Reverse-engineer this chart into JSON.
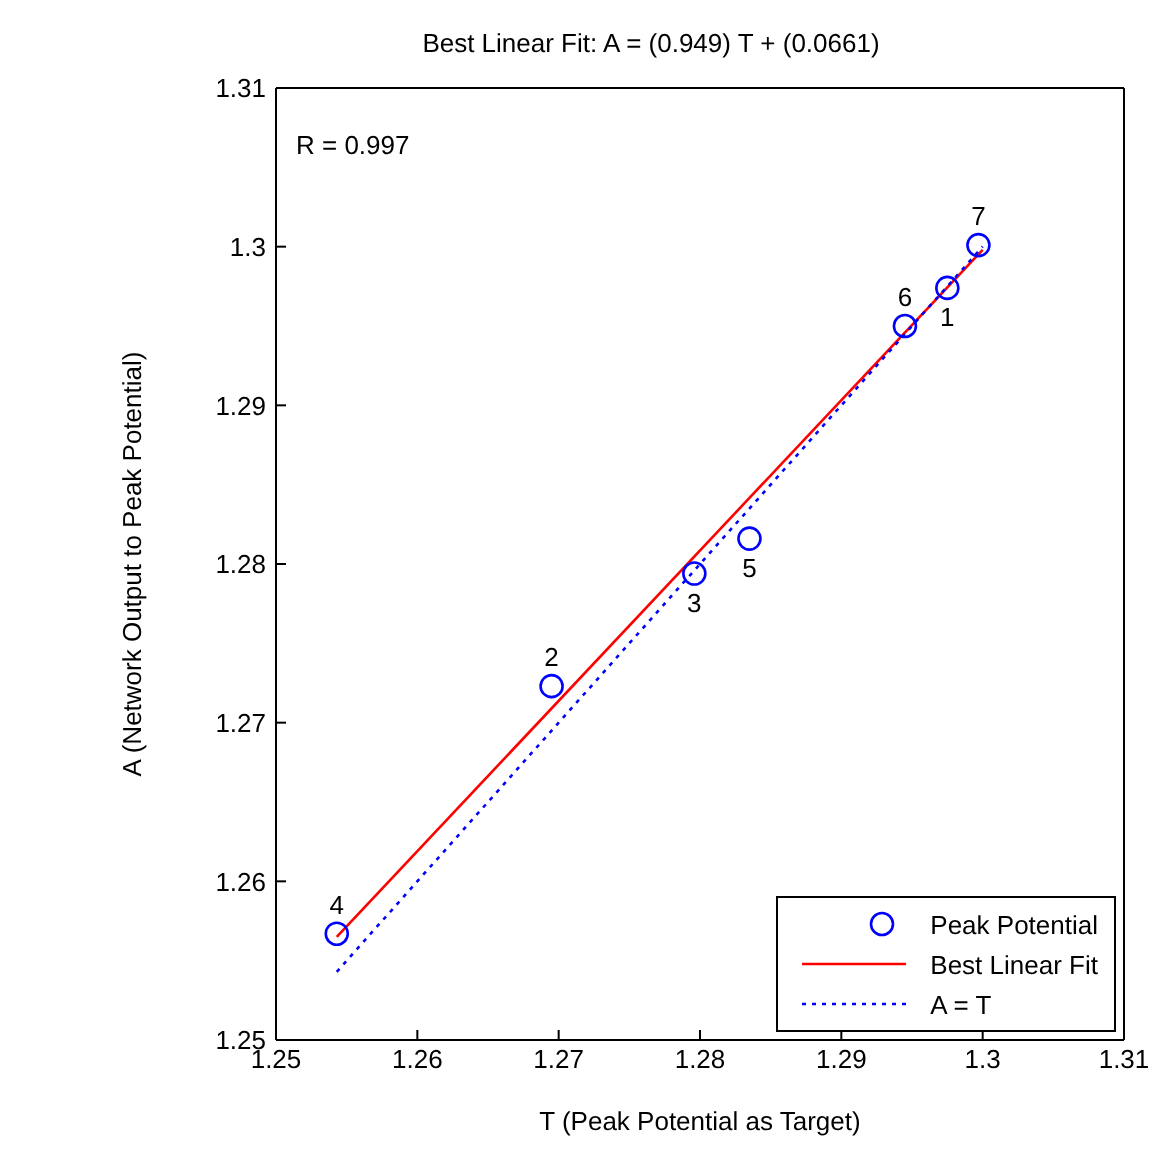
{
  "chart_data": {
    "type": "scatter",
    "title": "Best Linear Fit:  A = (0.949) T + (0.0661)",
    "xlabel": "T (Peak Potential as Target)",
    "ylabel": "A (Network Output to Peak Potential)",
    "series": [
      {
        "name": "Peak Potential",
        "color": "#0000ff",
        "marker": "circle",
        "x": [
          1.2543,
          1.2695,
          1.2796,
          1.2835,
          1.2945,
          1.2975,
          1.2997
        ],
        "values": [
          1.2567,
          1.2723,
          1.2794,
          1.2816,
          1.295,
          1.2974,
          1.3001
        ]
      },
      {
        "name": "Best Linear Fit",
        "type": "line",
        "color": "#ff0000",
        "marker": "none",
        "line_style": "solid",
        "x": [
          1.2543,
          1.3
        ],
        "values": [
          1.2565,
          1.2998
        ]
      },
      {
        "name": "A = T",
        "type": "line",
        "color": "#0000ff",
        "marker": "none",
        "line_style": "dotted",
        "x": [
          1.2543,
          1.3
        ],
        "values": [
          1.2543,
          1.3
        ]
      }
    ],
    "annotations": [
      "R = 0.997",
      {
        "text": "4",
        "x": 1.2543,
        "y": 1.2567
      },
      {
        "text": "2",
        "x": 1.2695,
        "y": 1.2723
      },
      {
        "text": "3",
        "x": 1.2796,
        "y": 1.2794
      },
      {
        "text": "5",
        "x": 1.2835,
        "y": 1.2816
      },
      {
        "text": "6",
        "x": 1.2945,
        "y": 1.295
      },
      {
        "text": "1",
        "x": 1.2975,
        "y": 1.2974
      },
      {
        "text": "7",
        "x": 1.2997,
        "y": 1.3001
      }
    ],
    "xlim": [
      1.25,
      1.31
    ],
    "ylim": [
      1.25,
      1.31
    ],
    "xticks": [
      1.25,
      1.26,
      1.27,
      1.28,
      1.29,
      1.3,
      1.31
    ],
    "yticks": [
      1.25,
      1.26,
      1.27,
      1.28,
      1.29,
      1.3,
      1.31
    ],
    "grid": false,
    "legend": "bottom right"
  }
}
